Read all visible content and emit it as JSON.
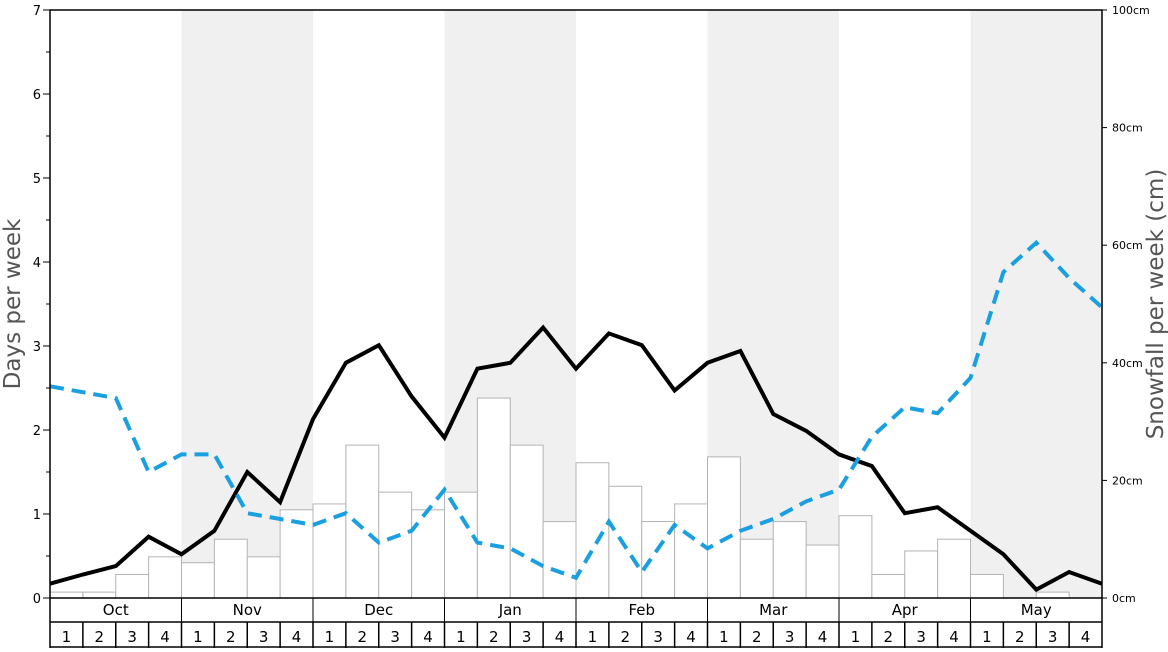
{
  "chart_data": {
    "type": "bar",
    "y_left_label": "Days per week",
    "y_right_label": "Snowfall per week (cm)",
    "y_left_range": [
      0,
      7
    ],
    "y_left_ticks": [
      "0",
      "1",
      "2",
      "3",
      "4",
      "5",
      "6",
      "7"
    ],
    "y_right_range": [
      0,
      100
    ],
    "y_right_ticks": [
      "0cm",
      "20cm",
      "40cm",
      "60cm",
      "80cm",
      "100cm"
    ],
    "months": [
      "Oct",
      "Nov",
      "Dec",
      "Jan",
      "Feb",
      "Mar",
      "Apr",
      "May"
    ],
    "weeks_per_month": [
      "1",
      "2",
      "3",
      "4"
    ],
    "shaded_months": [
      "Nov",
      "Jan",
      "Mar",
      "May"
    ],
    "colors": {
      "shade": "#f0f0f0",
      "bar_fill": "#ffffff",
      "bar_stroke": "#b4b4b4",
      "solid_line": "#000000",
      "dashed_line": "#1a9fe0"
    },
    "series": [
      {
        "kind": "bar",
        "axis": "left",
        "values": [
          0.07,
          0.07,
          0.28,
          0.49,
          0.42,
          0.7,
          0.49,
          1.05,
          1.12,
          1.82,
          1.26,
          1.05,
          1.26,
          2.38,
          1.82,
          0.91,
          1.61,
          1.33,
          0.91,
          1.12,
          1.68,
          0.7,
          0.91,
          0.63,
          0.98,
          0.28,
          0.56,
          0.7,
          0.28,
          0.0,
          0.07,
          0.0
        ]
      },
      {
        "kind": "line",
        "axis": "left",
        "values": [
          0.17,
          0.28,
          0.38,
          0.73,
          0.52,
          0.8,
          1.5,
          1.14,
          2.13,
          2.8,
          3.01,
          2.4,
          1.91,
          2.73,
          2.8,
          3.22,
          2.73,
          3.15,
          3.01,
          2.47,
          2.8,
          2.94,
          2.19,
          1.99,
          1.71,
          1.57,
          1.01,
          1.08,
          0.8,
          0.52,
          0.1,
          0.31,
          0.17
        ]
      },
      {
        "kind": "dashed-line",
        "axis": "left",
        "values": [
          2.52,
          2.45,
          2.38,
          1.5,
          1.71,
          1.71,
          1.01,
          0.94,
          0.87,
          1.01,
          0.66,
          0.8,
          1.29,
          0.66,
          0.59,
          0.38,
          0.24,
          0.91,
          0.31,
          0.87,
          0.59,
          0.8,
          0.94,
          1.15,
          1.29,
          1.92,
          2.27,
          2.2,
          2.62,
          3.88,
          4.23,
          3.81,
          3.46
        ]
      }
    ]
  }
}
